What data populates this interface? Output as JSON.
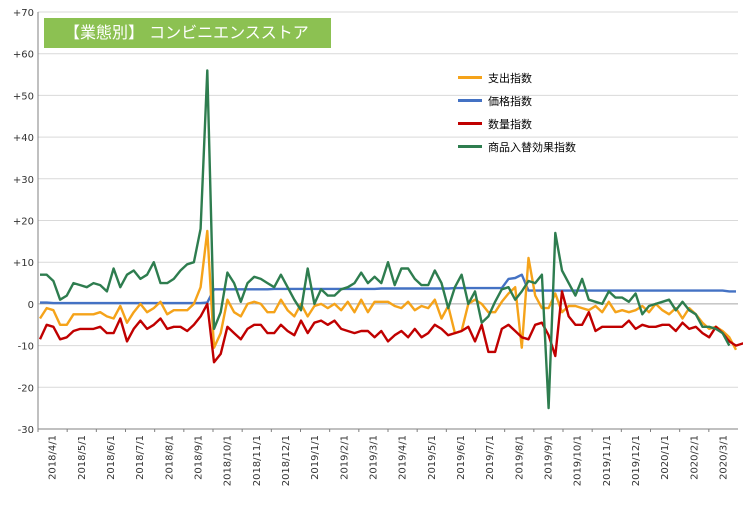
{
  "chart_data": {
    "type": "line",
    "title": "【業態別】 コンビニエンスストア",
    "ylim": [
      -30,
      70
    ],
    "grid": true,
    "legend_position": "top-right",
    "y_ticks": [
      "+70",
      "+60",
      "+50",
      "+40",
      "+30",
      "+20",
      "+10",
      "0",
      "-10",
      "-20",
      "-30"
    ],
    "x_tick_labels": [
      "2018/4/1",
      "2018/5/1",
      "2018/6/1",
      "2018/7/1",
      "2018/8/1",
      "2018/9/1",
      "2018/10/1",
      "2018/11/1",
      "2018/12/1",
      "2019/1/1",
      "2019/2/1",
      "2019/3/1",
      "2019/4/1",
      "2019/5/1",
      "2019/6/1",
      "2019/7/1",
      "2019/8/1",
      "2019/9/1",
      "2019/10/1",
      "2019/11/1",
      "2019/12/1",
      "2020/1/1",
      "2020/2/1",
      "2020/3/1"
    ],
    "x_start": "2018/4/1",
    "series": [
      {
        "name": "支出指数",
        "color": "#f5a31a",
        "values": [
          -3.5,
          -1,
          -1.5,
          -5,
          -5,
          -2.5,
          -2.5,
          -2.5,
          -2.5,
          -2,
          -3,
          -3.5,
          -0.5,
          -4.5,
          -2,
          0,
          -2,
          -1,
          0.5,
          -2.5,
          -1.5,
          -1.5,
          -1.5,
          0,
          4,
          17.5,
          -10.5,
          -7,
          1,
          -2,
          -3,
          0,
          0.5,
          0,
          -2,
          -2,
          1,
          -1.5,
          -3,
          0,
          -3,
          -0.5,
          0,
          -1,
          0,
          -1.5,
          0.5,
          -2,
          1,
          -2,
          0.5,
          0.5,
          0.5,
          -0.5,
          -1,
          0.5,
          -1.5,
          -0.5,
          -1,
          1,
          -3.5,
          -0.5,
          -7,
          -6.5,
          0,
          1,
          0,
          -2,
          -2,
          0.5,
          2.5,
          4,
          -10.5,
          11,
          2,
          -1,
          -1,
          2.5,
          -2,
          -0.5,
          -0.5,
          -1,
          -1.5,
          -0.5,
          -2,
          0.5,
          -2,
          -1.5,
          -2,
          -1.5,
          -0.5,
          -2,
          0,
          -1.5,
          -2.5,
          -1,
          -3.5,
          -1,
          -2.5,
          -4.5,
          -6,
          -5.5,
          -6.5,
          -8,
          -11
        ]
      },
      {
        "name": "価格指数",
        "color": "#4472c4",
        "values": [
          0.3,
          0.3,
          0.2,
          0.2,
          0.2,
          0.2,
          0.2,
          0.2,
          0.2,
          0.2,
          0.2,
          0.2,
          0.2,
          0.2,
          0.2,
          0.2,
          0.2,
          0.2,
          0.2,
          0.2,
          0.2,
          0.2,
          0.2,
          0.2,
          0.2,
          0.3,
          3.5,
          3.5,
          3.5,
          3.5,
          3.5,
          3.5,
          3.5,
          3.5,
          3.5,
          3.6,
          3.6,
          3.6,
          3.6,
          3.6,
          3.6,
          3.6,
          3.6,
          3.6,
          3.6,
          3.6,
          3.6,
          3.6,
          3.6,
          3.6,
          3.6,
          3.7,
          3.7,
          3.7,
          3.7,
          3.7,
          3.7,
          3.7,
          3.7,
          3.7,
          3.7,
          3.7,
          3.8,
          3.8,
          3.8,
          3.8,
          3.8,
          3.8,
          3.8,
          3.8,
          6,
          6.2,
          7,
          3.2,
          3.2,
          3.2,
          3.2,
          3.2,
          3.2,
          3.2,
          3.2,
          3.2,
          3.2,
          3.2,
          3.2,
          3.2,
          3.2,
          3.2,
          3.2,
          3.2,
          3.2,
          3.2,
          3.2,
          3.2,
          3.2,
          3.2,
          3.2,
          3.2,
          3.2,
          3.2,
          3.2,
          3.2,
          3.2,
          3,
          3
        ]
      },
      {
        "name": "数量指数",
        "color": "#c00000",
        "values": [
          -8.5,
          -5,
          -5.5,
          -8.5,
          -8,
          -6.5,
          -6,
          -6,
          -6,
          -5.5,
          -7,
          -7,
          -3.5,
          -9,
          -6,
          -4,
          -6,
          -5,
          -3.5,
          -6,
          -5.5,
          -5.5,
          -6.5,
          -5,
          -3,
          0,
          -14,
          -12,
          -5.5,
          -7,
          -8.5,
          -6,
          -5,
          -5,
          -7,
          -7,
          -5,
          -6.5,
          -7.5,
          -4,
          -7,
          -4.5,
          -4,
          -5,
          -4,
          -6,
          -6.5,
          -7,
          -6.5,
          -6.5,
          -8,
          -6.5,
          -9,
          -7.5,
          -6.5,
          -8,
          -6,
          -8,
          -7,
          -5,
          -6,
          -7.5,
          -7,
          -6.5,
          -5.5,
          -9,
          -5,
          -11.5,
          -11.5,
          -6,
          -5,
          -6.5,
          -8,
          -8.5,
          -5,
          -4.5,
          -7.5,
          -12.5,
          3,
          -3,
          -5,
          -5,
          -2,
          -6.5,
          -5.5,
          -5.5,
          -5.5,
          -5.5,
          -4,
          -6,
          -5,
          -5.5,
          -5.5,
          -5,
          -5,
          -6.5,
          -4.5,
          -6,
          -5.5,
          -7,
          -8,
          -5.5,
          -7,
          -9,
          -10,
          -9.5,
          -9.5,
          -12.5
        ]
      },
      {
        "name": "商品入替効果指数",
        "color": "#2e7d4f",
        "values": [
          7,
          7,
          5.5,
          1,
          2,
          5,
          4.5,
          4,
          5,
          4.5,
          3,
          8.5,
          4,
          7,
          8,
          6,
          7,
          10,
          5,
          5,
          6,
          8,
          9.5,
          10,
          18,
          56,
          -6,
          -2,
          7.5,
          5,
          0.5,
          5,
          6.5,
          6,
          5,
          4,
          7,
          4,
          1,
          -1.5,
          8.5,
          0,
          3.5,
          2,
          2,
          3.5,
          4,
          5,
          7.5,
          5,
          6.5,
          5,
          10,
          4.5,
          8.5,
          8.5,
          6,
          4.5,
          4.5,
          8,
          5,
          -1,
          4,
          7,
          0,
          3,
          -4.5,
          -3,
          0.5,
          3.5,
          4,
          1,
          3,
          5.5,
          5,
          7,
          -25,
          17,
          8,
          5,
          2,
          6,
          1,
          0.5,
          0,
          3,
          1.5,
          1.5,
          0.5,
          2.5,
          -2.5,
          -0.5,
          0,
          0.5,
          1,
          -1.5,
          0.5,
          -1.5,
          -2.5,
          -5.5,
          -5.5,
          -6,
          -7,
          -10
        ]
      }
    ]
  }
}
